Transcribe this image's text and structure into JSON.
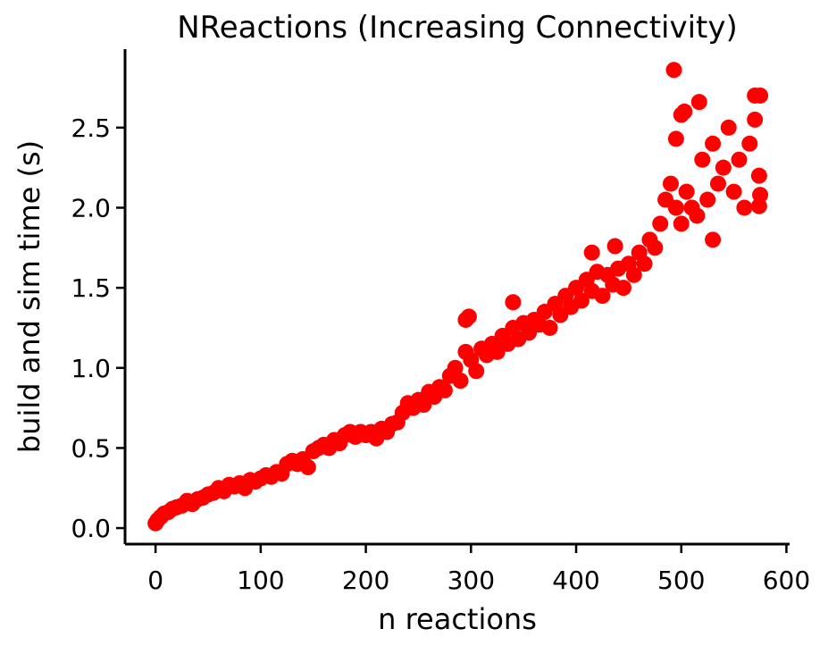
{
  "chart_data": {
    "type": "scatter",
    "title": "NReactions (Increasing Connectivity)",
    "x_label": "n reactions",
    "y_label": "build and sim time (s)",
    "color": "#ff0000",
    "xlim": [
      -29,
      603
    ],
    "ylim": [
      -0.1,
      2.99
    ],
    "xticks": [
      0,
      100,
      200,
      300,
      400,
      500,
      600
    ],
    "yticks": [
      {
        "value": 0,
        "label": "0.0"
      },
      {
        "value": 0.5,
        "label": "0.5"
      },
      {
        "value": 1,
        "label": "1.0"
      },
      {
        "value": 1.5,
        "label": "1.5"
      },
      {
        "value": 2,
        "label": "2.0"
      },
      {
        "value": 2.5,
        "label": "2.5"
      }
    ],
    "grid": false,
    "x": [
      0,
      2,
      5,
      8,
      12,
      16,
      20,
      25,
      30,
      35,
      40,
      45,
      50,
      55,
      60,
      65,
      70,
      75,
      80,
      85,
      90,
      95,
      100,
      105,
      110,
      115,
      120,
      125,
      130,
      135,
      140,
      145,
      150,
      155,
      160,
      165,
      170,
      175,
      180,
      185,
      190,
      195,
      200,
      205,
      210,
      215,
      220,
      225,
      230,
      235,
      240,
      245,
      250,
      255,
      260,
      265,
      270,
      275,
      280,
      285,
      290,
      295,
      300,
      305,
      310,
      315,
      320,
      325,
      330,
      335,
      340,
      345,
      350,
      355,
      360,
      365,
      370,
      375,
      380,
      385,
      390,
      395,
      400,
      405,
      410,
      415,
      420,
      425,
      430,
      435,
      440,
      445,
      450,
      455,
      460,
      465,
      470,
      475,
      480,
      485,
      490,
      495,
      500,
      505,
      510,
      515,
      520,
      525,
      530,
      535,
      540,
      545,
      550,
      555,
      560,
      565,
      570,
      575,
      493,
      495,
      500,
      503,
      517,
      570,
      575,
      340,
      295,
      298,
      437,
      415,
      530,
      574,
      574
    ],
    "y": [
      0.03,
      0.05,
      0.07,
      0.09,
      0.1,
      0.12,
      0.13,
      0.14,
      0.17,
      0.15,
      0.18,
      0.19,
      0.21,
      0.22,
      0.25,
      0.23,
      0.27,
      0.26,
      0.28,
      0.25,
      0.3,
      0.29,
      0.31,
      0.33,
      0.32,
      0.35,
      0.34,
      0.4,
      0.42,
      0.4,
      0.43,
      0.38,
      0.48,
      0.5,
      0.52,
      0.5,
      0.55,
      0.53,
      0.58,
      0.6,
      0.57,
      0.6,
      0.58,
      0.6,
      0.56,
      0.62,
      0.6,
      0.65,
      0.66,
      0.72,
      0.78,
      0.75,
      0.8,
      0.77,
      0.85,
      0.82,
      0.88,
      0.86,
      0.95,
      1.0,
      0.92,
      1.1,
      1.05,
      0.98,
      1.12,
      1.08,
      1.15,
      1.1,
      1.2,
      1.15,
      1.25,
      1.18,
      1.28,
      1.22,
      1.3,
      1.27,
      1.35,
      1.25,
      1.4,
      1.33,
      1.45,
      1.38,
      1.5,
      1.42,
      1.55,
      1.48,
      1.6,
      1.45,
      1.58,
      1.52,
      1.62,
      1.5,
      1.65,
      1.58,
      1.72,
      1.65,
      1.8,
      1.75,
      1.9,
      2.05,
      2.15,
      2.0,
      1.9,
      2.1,
      2.0,
      1.95,
      2.3,
      2.05,
      2.4,
      2.15,
      2.25,
      2.5,
      2.1,
      2.3,
      2.0,
      2.4,
      2.55,
      2.08,
      2.86,
      2.43,
      2.58,
      2.6,
      2.66,
      2.7,
      2.7,
      1.41,
      1.3,
      1.32,
      1.76,
      1.72,
      1.8,
      2.01,
      2.2
    ]
  }
}
